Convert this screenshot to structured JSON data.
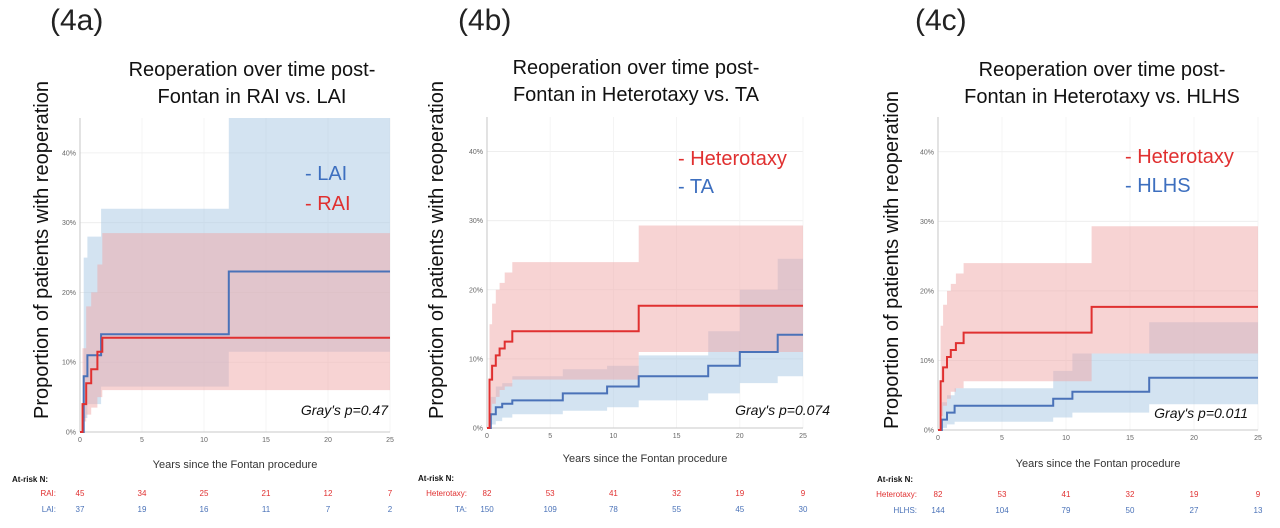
{
  "chart_data": [
    {
      "type": "line",
      "panel_label": "(4a)",
      "title_lines": [
        "Reoperation over time post-",
        "Fontan in RAI vs. LAI"
      ],
      "ylabel": "Proportion of patients with reoperation",
      "xlabel": "Years since the Fontan procedure",
      "xlim": [
        0,
        25
      ],
      "ylim": [
        0,
        0.45
      ],
      "x_ticks": [
        0,
        5,
        10,
        15,
        20,
        25
      ],
      "y_ticks": [
        0,
        0.1,
        0.2,
        0.3,
        0.4
      ],
      "y_tick_labels": [
        "0%",
        "10%",
        "20%",
        "30%",
        "40%"
      ],
      "legend": [
        "- LAI",
        "- RAI"
      ],
      "legend_colors": [
        "#3d6fbf",
        "#e03030"
      ],
      "annotation": "Gray's p=0.47",
      "series": [
        {
          "name": "LAI",
          "color": "#4a72b8",
          "band_color": "#a8c8e4",
          "x": [
            0,
            0.3,
            0.6,
            1.0,
            1.7,
            12.0,
            25
          ],
          "y": [
            0,
            0.08,
            0.11,
            0.11,
            0.14,
            0.23,
            0.23
          ],
          "lower": [
            0,
            0.02,
            0.04,
            0.04,
            0.065,
            0.115,
            0.115
          ],
          "upper": [
            0,
            0.25,
            0.28,
            0.28,
            0.32,
            0.45,
            0.45
          ]
        },
        {
          "name": "RAI",
          "color": "#e03030",
          "band_color": "#f0a8a8",
          "x": [
            0,
            0.2,
            0.5,
            0.9,
            1.4,
            1.8,
            25
          ],
          "y": [
            0,
            0.04,
            0.07,
            0.09,
            0.115,
            0.135,
            0.135
          ],
          "lower": [
            0,
            0.015,
            0.025,
            0.035,
            0.05,
            0.06,
            0.06
          ],
          "upper": [
            0,
            0.12,
            0.18,
            0.2,
            0.24,
            0.285,
            0.285
          ]
        }
      ],
      "at_risk": {
        "title": "At-risk N:",
        "times": [
          0,
          5,
          10,
          15,
          20,
          25
        ],
        "rows": [
          {
            "label": "RAI:",
            "color": "#e03030",
            "values": [
              "45",
              "34",
              "25",
              "21",
              "12",
              "7"
            ]
          },
          {
            "label": "LAI:",
            "color": "#4a72b8",
            "values": [
              "37",
              "19",
              "16",
              "11",
              "7",
              "2"
            ]
          }
        ]
      }
    },
    {
      "type": "line",
      "panel_label": "(4b)",
      "title_lines": [
        "Reoperation over time post-",
        "Fontan in Heterotaxy vs. TA"
      ],
      "ylabel": "Proportion of patients with reoperation",
      "xlabel": "Years since the Fontan procedure",
      "xlim": [
        0,
        25
      ],
      "ylim": [
        0,
        0.45
      ],
      "x_ticks": [
        0,
        5,
        10,
        15,
        20,
        25
      ],
      "y_ticks": [
        0,
        0.1,
        0.2,
        0.3,
        0.4
      ],
      "y_tick_labels": [
        "0%",
        "10%",
        "20%",
        "30%",
        "40%"
      ],
      "legend": [
        "- Heterotaxy",
        "- TA"
      ],
      "legend_colors": [
        "#e03030",
        "#3d6fbf"
      ],
      "annotation": "Gray's p=0.074",
      "series": [
        {
          "name": "TA",
          "color": "#4a72b8",
          "band_color": "#a8c8e4",
          "x": [
            0,
            0.3,
            0.7,
            1.2,
            2.0,
            6.0,
            9.5,
            12.0,
            17.5,
            20.0,
            23.0,
            25
          ],
          "y": [
            0,
            0.02,
            0.03,
            0.035,
            0.04,
            0.05,
            0.06,
            0.075,
            0.09,
            0.11,
            0.135,
            0.135
          ],
          "lower": [
            0,
            0.005,
            0.01,
            0.015,
            0.02,
            0.025,
            0.03,
            0.04,
            0.05,
            0.065,
            0.075,
            0.075
          ],
          "upper": [
            0,
            0.045,
            0.06,
            0.065,
            0.075,
            0.085,
            0.09,
            0.105,
            0.14,
            0.2,
            0.245,
            0.245
          ]
        },
        {
          "name": "Heterotaxy",
          "color": "#e03030",
          "band_color": "#f0a8a8",
          "x": [
            0,
            0.2,
            0.4,
            0.7,
            1.0,
            1.4,
            2.0,
            12.0,
            25
          ],
          "y": [
            0,
            0.07,
            0.09,
            0.105,
            0.115,
            0.125,
            0.14,
            0.177,
            0.177
          ],
          "lower": [
            0,
            0.02,
            0.035,
            0.045,
            0.055,
            0.06,
            0.07,
            0.11,
            0.11
          ],
          "upper": [
            0,
            0.15,
            0.18,
            0.2,
            0.21,
            0.225,
            0.24,
            0.293,
            0.293
          ]
        }
      ],
      "at_risk": {
        "title": "At-risk N:",
        "times": [
          0,
          5,
          10,
          15,
          20,
          25
        ],
        "rows": [
          {
            "label": "Heterotaxy:",
            "color": "#e03030",
            "values": [
              "82",
              "53",
              "41",
              "32",
              "19",
              "9"
            ]
          },
          {
            "label": "TA:",
            "color": "#4a72b8",
            "values": [
              "150",
              "109",
              "78",
              "55",
              "45",
              "30"
            ]
          }
        ]
      }
    },
    {
      "type": "line",
      "panel_label": "(4c)",
      "title_lines": [
        "Reoperation over time post-",
        "Fontan in Heterotaxy vs. HLHS"
      ],
      "ylabel": "Proportion of patients with reoperation",
      "xlabel": "Years since the Fontan procedure",
      "xlim": [
        0,
        25
      ],
      "ylim": [
        0,
        0.45
      ],
      "x_ticks": [
        0,
        5,
        10,
        15,
        20,
        25
      ],
      "y_ticks": [
        0,
        0.1,
        0.2,
        0.3,
        0.4
      ],
      "y_tick_labels": [
        "0%",
        "10%",
        "20%",
        "30%",
        "40%"
      ],
      "legend": [
        "- Heterotaxy",
        "- HLHS"
      ],
      "legend_colors": [
        "#e03030",
        "#3d6fbf"
      ],
      "annotation": "Gray's p=0.011",
      "series": [
        {
          "name": "HLHS",
          "color": "#4a72b8",
          "band_color": "#a8c8e4",
          "x": [
            0,
            0.3,
            0.7,
            1.3,
            9.0,
            10.5,
            16.5,
            25
          ],
          "y": [
            0,
            0.015,
            0.025,
            0.035,
            0.045,
            0.055,
            0.075,
            0.075
          ],
          "lower": [
            0,
            0.003,
            0.008,
            0.012,
            0.018,
            0.025,
            0.037,
            0.037
          ],
          "upper": [
            0,
            0.04,
            0.05,
            0.06,
            0.085,
            0.11,
            0.155,
            0.155
          ]
        },
        {
          "name": "Heterotaxy",
          "color": "#e03030",
          "band_color": "#f0a8a8",
          "x": [
            0,
            0.2,
            0.4,
            0.7,
            1.0,
            1.4,
            2.0,
            12.0,
            25
          ],
          "y": [
            0,
            0.07,
            0.09,
            0.105,
            0.115,
            0.125,
            0.14,
            0.177,
            0.177
          ],
          "lower": [
            0,
            0.02,
            0.035,
            0.045,
            0.055,
            0.06,
            0.07,
            0.11,
            0.11
          ],
          "upper": [
            0,
            0.15,
            0.18,
            0.2,
            0.21,
            0.225,
            0.24,
            0.293,
            0.293
          ]
        }
      ],
      "at_risk": {
        "title": "At-risk N:",
        "times": [
          0,
          5,
          10,
          15,
          20,
          25
        ],
        "rows": [
          {
            "label": "Heterotaxy:",
            "color": "#e03030",
            "values": [
              "82",
              "53",
              "41",
              "32",
              "19",
              "9"
            ]
          },
          {
            "label": "HLHS:",
            "color": "#4a72b8",
            "values": [
              "144",
              "104",
              "79",
              "50",
              "27",
              "13"
            ]
          }
        ]
      }
    }
  ]
}
